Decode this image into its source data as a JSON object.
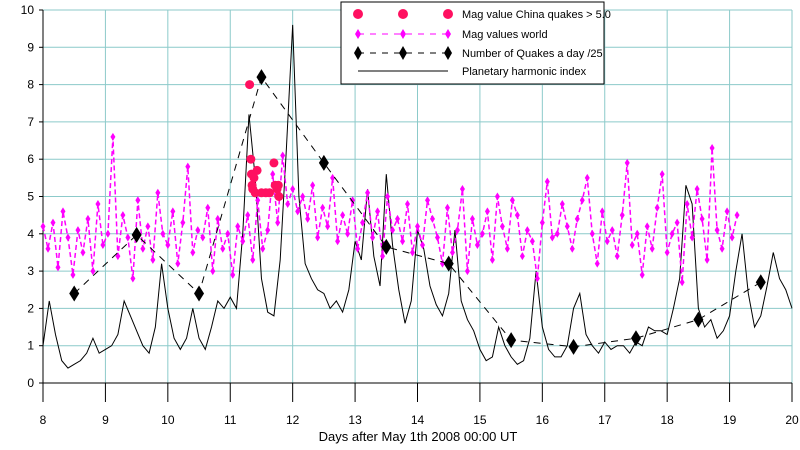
{
  "chart_data": {
    "type": "line",
    "title": "",
    "xlabel": "Days after May 1th 2008  00:00 UT",
    "ylabel": "",
    "xlim": [
      8,
      20
    ],
    "ylim": [
      0,
      10
    ],
    "grid": true,
    "legend_placement": "top-center",
    "x_ticks": [
      "8",
      "9",
      "10",
      "11",
      "12",
      "13",
      "14",
      "15",
      "16",
      "17",
      "18",
      "19",
      "20"
    ],
    "y_ticks": [
      "0",
      "1",
      "2",
      "3",
      "4",
      "5",
      "6",
      "7",
      "8",
      "9",
      "10"
    ],
    "colors": {
      "grid": "#8ccaca",
      "china": "#ff1060",
      "world": "#ff00ff",
      "count": "#000000",
      "harmonic": "#000000"
    },
    "series": [
      {
        "name": "Mag value China quakes > 5.0",
        "style": "red-dots",
        "x": [
          11.31,
          11.33,
          11.34,
          11.35,
          11.36,
          11.38,
          11.4,
          11.43,
          11.5,
          11.57,
          11.63,
          11.7,
          11.72,
          11.75,
          11.77,
          11.78
        ],
        "y": [
          8.0,
          6.0,
          5.6,
          5.3,
          5.2,
          5.5,
          5.1,
          5.7,
          5.1,
          5.1,
          5.1,
          5.9,
          5.3,
          5.2,
          5.3,
          5.0
        ]
      },
      {
        "name": "Mag values world",
        "style": "magenta-dashed-markers",
        "x_start": 8.0,
        "x_step": 0.08,
        "y": [
          4.2,
          3.6,
          4.3,
          3.1,
          4.6,
          3.9,
          2.9,
          4.1,
          3.5,
          4.4,
          3.0,
          4.8,
          3.7,
          4.0,
          6.6,
          3.4,
          4.5,
          3.9,
          2.8,
          4.9,
          3.6,
          4.2,
          3.3,
          5.1,
          4.0,
          3.7,
          4.6,
          3.2,
          4.3,
          5.8,
          3.5,
          4.1,
          3.9,
          4.7,
          3.0,
          4.4,
          3.6,
          4.0,
          2.9,
          4.2,
          3.8,
          4.5,
          3.3,
          4.9,
          3.6,
          4.1,
          5.6,
          4.3,
          6.1,
          4.8,
          5.2,
          4.6,
          5.0,
          4.4,
          5.3,
          3.9,
          4.7,
          4.2,
          5.5,
          3.8,
          4.5,
          4.0,
          4.9,
          3.6,
          4.3,
          5.1,
          3.9,
          4.6,
          3.4,
          5.0,
          4.1,
          4.4,
          3.8,
          4.8,
          3.5,
          4.2,
          3.7,
          4.9,
          4.4,
          3.9,
          3.2,
          4.7,
          3.5,
          4.1,
          5.2,
          3.0,
          4.4,
          3.7,
          4.0,
          4.6,
          3.3,
          5.0,
          4.2,
          3.6,
          4.9,
          4.5,
          3.4,
          4.1,
          3.8,
          2.8,
          4.3,
          5.4,
          3.9,
          4.0,
          4.8,
          4.2,
          3.6,
          4.4,
          4.9,
          5.5,
          4.0,
          3.2,
          4.6,
          3.8,
          4.1,
          3.4,
          4.5,
          5.9,
          3.7,
          4.0,
          2.9,
          4.2,
          3.6,
          4.7,
          5.6,
          3.5,
          4.0,
          4.3,
          2.7,
          4.8,
          3.9,
          5.2,
          4.4,
          3.3,
          6.3,
          4.1,
          3.6,
          4.6,
          3.9,
          4.5
        ]
      },
      {
        "name": "Number of Quakes a day /25",
        "style": "black-diamonds-dashed",
        "x": [
          8.5,
          9.5,
          10.5,
          11.5,
          12.5,
          13.5,
          14.5,
          15.5,
          16.5,
          17.5,
          18.5,
          19.5
        ],
        "y": [
          2.4,
          3.97,
          2.4,
          8.2,
          5.9,
          3.65,
          3.2,
          1.15,
          0.97,
          1.2,
          1.7,
          2.7
        ]
      },
      {
        "name": "Planetary harmonic index",
        "style": "black-solid",
        "x_start": 8.0,
        "x_step": 0.1,
        "y": [
          1.0,
          2.2,
          1.3,
          0.6,
          0.4,
          0.5,
          0.6,
          0.8,
          1.2,
          0.8,
          0.9,
          1.0,
          1.3,
          2.2,
          1.8,
          1.4,
          1.0,
          0.8,
          1.5,
          3.2,
          2.0,
          1.2,
          0.9,
          1.2,
          2.0,
          1.2,
          0.9,
          1.5,
          2.2,
          2.0,
          2.3,
          2.0,
          4.0,
          7.2,
          5.5,
          2.8,
          1.9,
          1.8,
          3.3,
          6.3,
          9.6,
          5.0,
          3.2,
          2.8,
          2.5,
          2.4,
          2.0,
          2.2,
          1.9,
          2.5,
          3.8,
          3.3,
          5.2,
          3.4,
          2.6,
          5.6,
          3.7,
          2.5,
          1.6,
          2.2,
          4.1,
          3.6,
          2.6,
          2.1,
          1.8,
          2.4,
          4.1,
          2.2,
          1.7,
          1.4,
          0.9,
          0.6,
          0.7,
          1.5,
          1.0,
          0.7,
          0.5,
          0.6,
          1.2,
          3.0,
          1.5,
          0.9,
          0.7,
          0.7,
          1.0,
          2.0,
          2.4,
          1.3,
          1.0,
          0.8,
          1.1,
          0.9,
          1.0,
          1.0,
          0.8,
          1.1,
          1.0,
          1.5,
          1.4,
          1.4,
          1.3,
          2.0,
          2.8,
          5.3,
          4.8,
          2.0,
          1.5,
          1.7,
          1.2,
          1.4,
          1.8,
          3.0,
          4.0,
          2.4,
          1.5,
          1.8,
          2.6,
          3.5,
          2.8,
          2.5,
          2.0
        ]
      }
    ]
  }
}
